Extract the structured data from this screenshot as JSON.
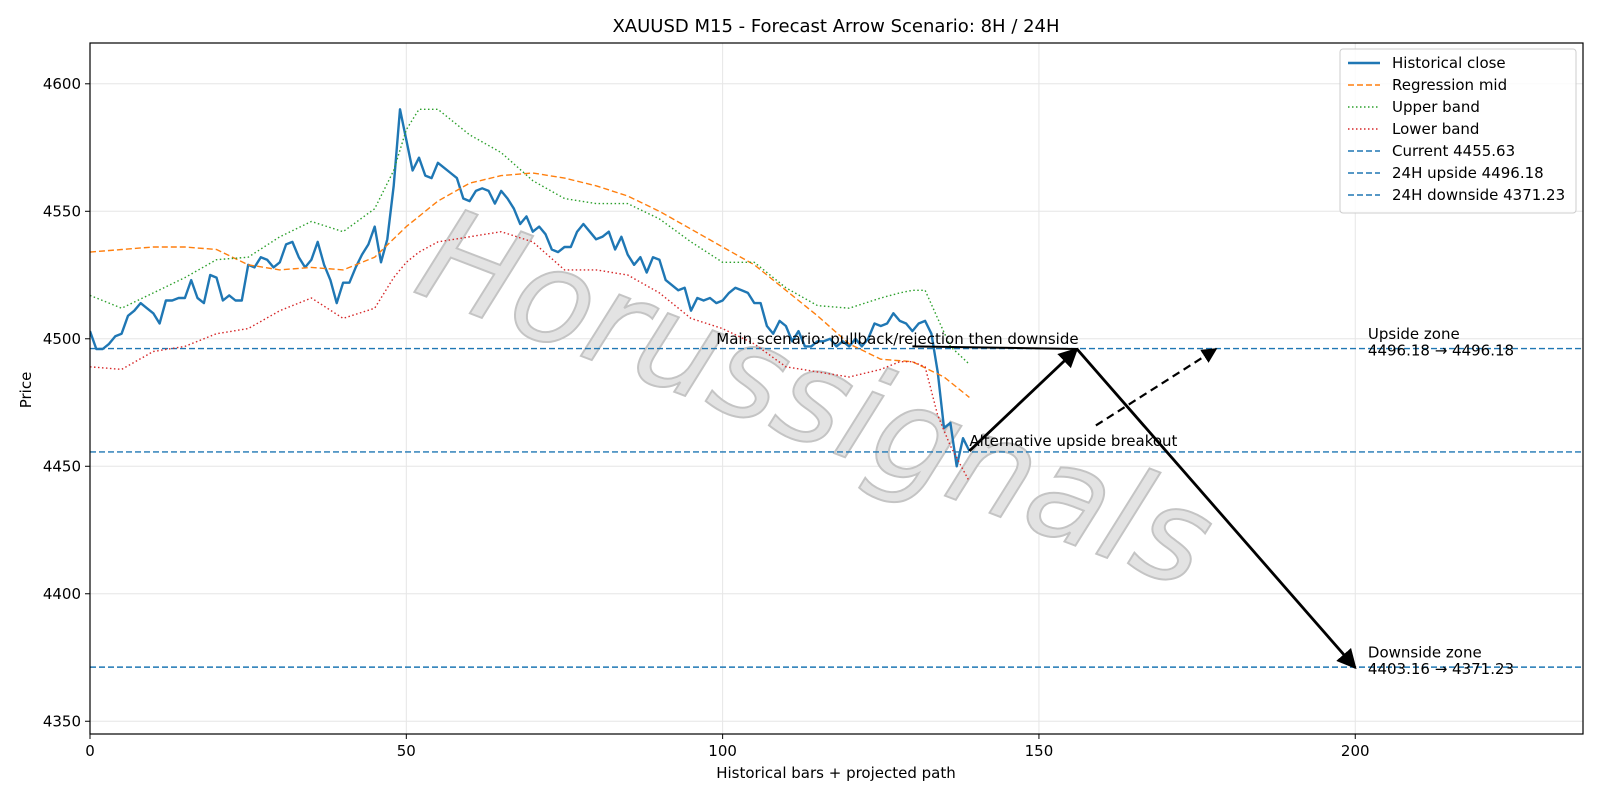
{
  "chart_data": {
    "type": "line",
    "title": "XAUUSD M15 - Forecast Arrow Scenario: 8H / 24H",
    "xlabel": "Historical bars + projected path",
    "ylabel": "Price",
    "xlim": [
      0,
      236
    ],
    "ylim": [
      4345,
      4616
    ],
    "x_ticks": [
      0,
      50,
      100,
      150,
      200
    ],
    "y_ticks": [
      4350,
      4400,
      4450,
      4500,
      4550,
      4600
    ],
    "grid": true,
    "legend_position": "top-right",
    "watermark": "Horussignals",
    "series": [
      {
        "name": "Historical close",
        "style": "solid",
        "color": "#1f77b4",
        "x": [
          0,
          1,
          2,
          3,
          4,
          5,
          6,
          7,
          8,
          9,
          10,
          11,
          12,
          13,
          14,
          15,
          16,
          17,
          18,
          19,
          20,
          21,
          22,
          23,
          24,
          25,
          26,
          27,
          28,
          29,
          30,
          31,
          32,
          33,
          34,
          35,
          36,
          37,
          38,
          39,
          40,
          41,
          42,
          43,
          44,
          45,
          46,
          47,
          48,
          49,
          50,
          51,
          52,
          53,
          54,
          55,
          56,
          57,
          58,
          59,
          60,
          61,
          62,
          63,
          64,
          65,
          66,
          67,
          68,
          69,
          70,
          71,
          72,
          73,
          74,
          75,
          76,
          77,
          78,
          79,
          80,
          81,
          82,
          83,
          84,
          85,
          86,
          87,
          88,
          89,
          90,
          91,
          92,
          93,
          94,
          95,
          96,
          97,
          98,
          99,
          100,
          101,
          102,
          103,
          104,
          105,
          106,
          107,
          108,
          109,
          110,
          111,
          112,
          113,
          114,
          115,
          116,
          117,
          118,
          119,
          120,
          121,
          122,
          123,
          124,
          125,
          126,
          127,
          128,
          129,
          130,
          131,
          132,
          133,
          134,
          135,
          136,
          137,
          138,
          139
        ],
        "values": [
          4503,
          4496,
          4496,
          4498,
          4501,
          4502,
          4509,
          4511,
          4514,
          4512,
          4510,
          4506,
          4515,
          4515,
          4516,
          4516,
          4523,
          4516,
          4514,
          4525,
          4524,
          4515,
          4517,
          4515,
          4515,
          4529,
          4528,
          4532,
          4531,
          4528,
          4530,
          4537,
          4538,
          4532,
          4528,
          4531,
          4538,
          4529,
          4523,
          4514,
          4522,
          4522,
          4528,
          4533,
          4537,
          4544,
          4530,
          4539,
          4560,
          4590,
          4578,
          4566,
          4571,
          4564,
          4563,
          4569,
          4567,
          4565,
          4563,
          4555,
          4554,
          4558,
          4559,
          4558,
          4553,
          4558,
          4555,
          4551,
          4545,
          4548,
          4542,
          4544,
          4541,
          4535,
          4534,
          4536,
          4536,
          4542,
          4545,
          4542,
          4539,
          4540,
          4542,
          4535,
          4540,
          4533,
          4529,
          4532,
          4526,
          4532,
          4531,
          4523,
          4521,
          4519,
          4520,
          4511,
          4516,
          4515,
          4516,
          4514,
          4515,
          4518,
          4520,
          4519,
          4518,
          4514,
          4514,
          4505,
          4502,
          4507,
          4505,
          4499,
          4503,
          4497,
          4497,
          4499,
          4499,
          4500,
          4497,
          4499,
          4497,
          4500,
          4497,
          4500,
          4506,
          4505,
          4506,
          4510,
          4507,
          4506,
          4503,
          4506,
          4507,
          4502,
          4487,
          4465,
          4467,
          4450,
          4461,
          4456
        ]
      },
      {
        "name": "Regression mid",
        "style": "dashed",
        "color": "#ff7f0e",
        "x": [
          0,
          5,
          10,
          15,
          20,
          25,
          30,
          35,
          40,
          45,
          50,
          55,
          60,
          65,
          70,
          75,
          80,
          85,
          90,
          95,
          100,
          105,
          110,
          115,
          120,
          125,
          130,
          135,
          139
        ],
        "values": [
          4534,
          4535,
          4536,
          4536,
          4535,
          4529,
          4527,
          4528,
          4527,
          4532,
          4544,
          4554,
          4561,
          4564,
          4565,
          4563,
          4560,
          4556,
          4550,
          4543,
          4536,
          4529,
          4519,
          4509,
          4498,
          4492,
          4491,
          4485,
          4477
        ]
      },
      {
        "name": "Upper band",
        "style": "dotted",
        "color": "#2ca02c",
        "x": [
          0,
          5,
          10,
          15,
          20,
          25,
          30,
          35,
          40,
          45,
          48,
          50,
          52,
          55,
          60,
          65,
          70,
          75,
          80,
          85,
          90,
          95,
          100,
          105,
          110,
          115,
          120,
          125,
          128,
          130,
          132,
          134,
          136,
          139
        ],
        "values": [
          4517,
          4512,
          4518,
          4524,
          4531,
          4532,
          4540,
          4546,
          4542,
          4551,
          4566,
          4582,
          4590,
          4590,
          4580,
          4573,
          4562,
          4555,
          4553,
          4553,
          4547,
          4538,
          4530,
          4530,
          4520,
          4513,
          4512,
          4516,
          4518,
          4519,
          4519,
          4508,
          4497,
          4490
        ]
      },
      {
        "name": "Lower band",
        "style": "dotted",
        "color": "#d62728",
        "x": [
          0,
          5,
          10,
          15,
          20,
          25,
          30,
          35,
          40,
          45,
          48,
          50,
          52,
          55,
          60,
          65,
          70,
          75,
          80,
          85,
          90,
          95,
          100,
          105,
          110,
          115,
          120,
          125,
          128,
          130,
          132,
          134,
          136,
          139
        ],
        "values": [
          4489,
          4488,
          4495,
          4497,
          4502,
          4504,
          4511,
          4516,
          4508,
          4512,
          4524,
          4530,
          4534,
          4538,
          4540,
          4542,
          4538,
          4527,
          4527,
          4525,
          4518,
          4508,
          4504,
          4498,
          4489,
          4487,
          4485,
          4488,
          4491,
          4491,
          4489,
          4470,
          4458,
          4444
        ]
      }
    ],
    "hlines": [
      {
        "name": "Current 4455.63",
        "y": 4455.63,
        "color": "#1f77b4",
        "style": "dashed"
      },
      {
        "name": "24H upside 4496.18",
        "y": 4496.18,
        "color": "#1f77b4",
        "style": "dashed"
      },
      {
        "name": "24H downside 4371.23",
        "y": 4371.23,
        "color": "#1f77b4",
        "style": "dashed"
      }
    ],
    "arrows": [
      {
        "kind": "main-leg-1",
        "style": "solid",
        "from": [
          139,
          4456
        ],
        "to": [
          156,
          4496
        ]
      },
      {
        "kind": "main-leg-2",
        "style": "solid",
        "from": [
          156,
          4496
        ],
        "to": [
          200,
          4371
        ]
      },
      {
        "kind": "main-line",
        "style": "solid",
        "from": [
          130,
          4497
        ],
        "to": [
          156,
          4496
        ]
      },
      {
        "kind": "alternative",
        "style": "dashed",
        "from": [
          159,
          4466
        ],
        "to": [
          178,
          4496
        ]
      }
    ],
    "annotations": [
      {
        "text": "Main scenario: pullback/rejection then downside",
        "x": 99,
        "y": 4498
      },
      {
        "text": "Alternative upside breakout",
        "x": 139,
        "y": 4458
      },
      {
        "text": "Upside zone",
        "x": 202,
        "y": 4500
      },
      {
        "text": "4496.18 → 4496.18",
        "x": 202,
        "y": 4493.5
      },
      {
        "text": "Downside zone",
        "x": 202,
        "y": 4375
      },
      {
        "text": "4403.16 → 4371.23",
        "x": 202,
        "y": 4368.5
      }
    ]
  }
}
